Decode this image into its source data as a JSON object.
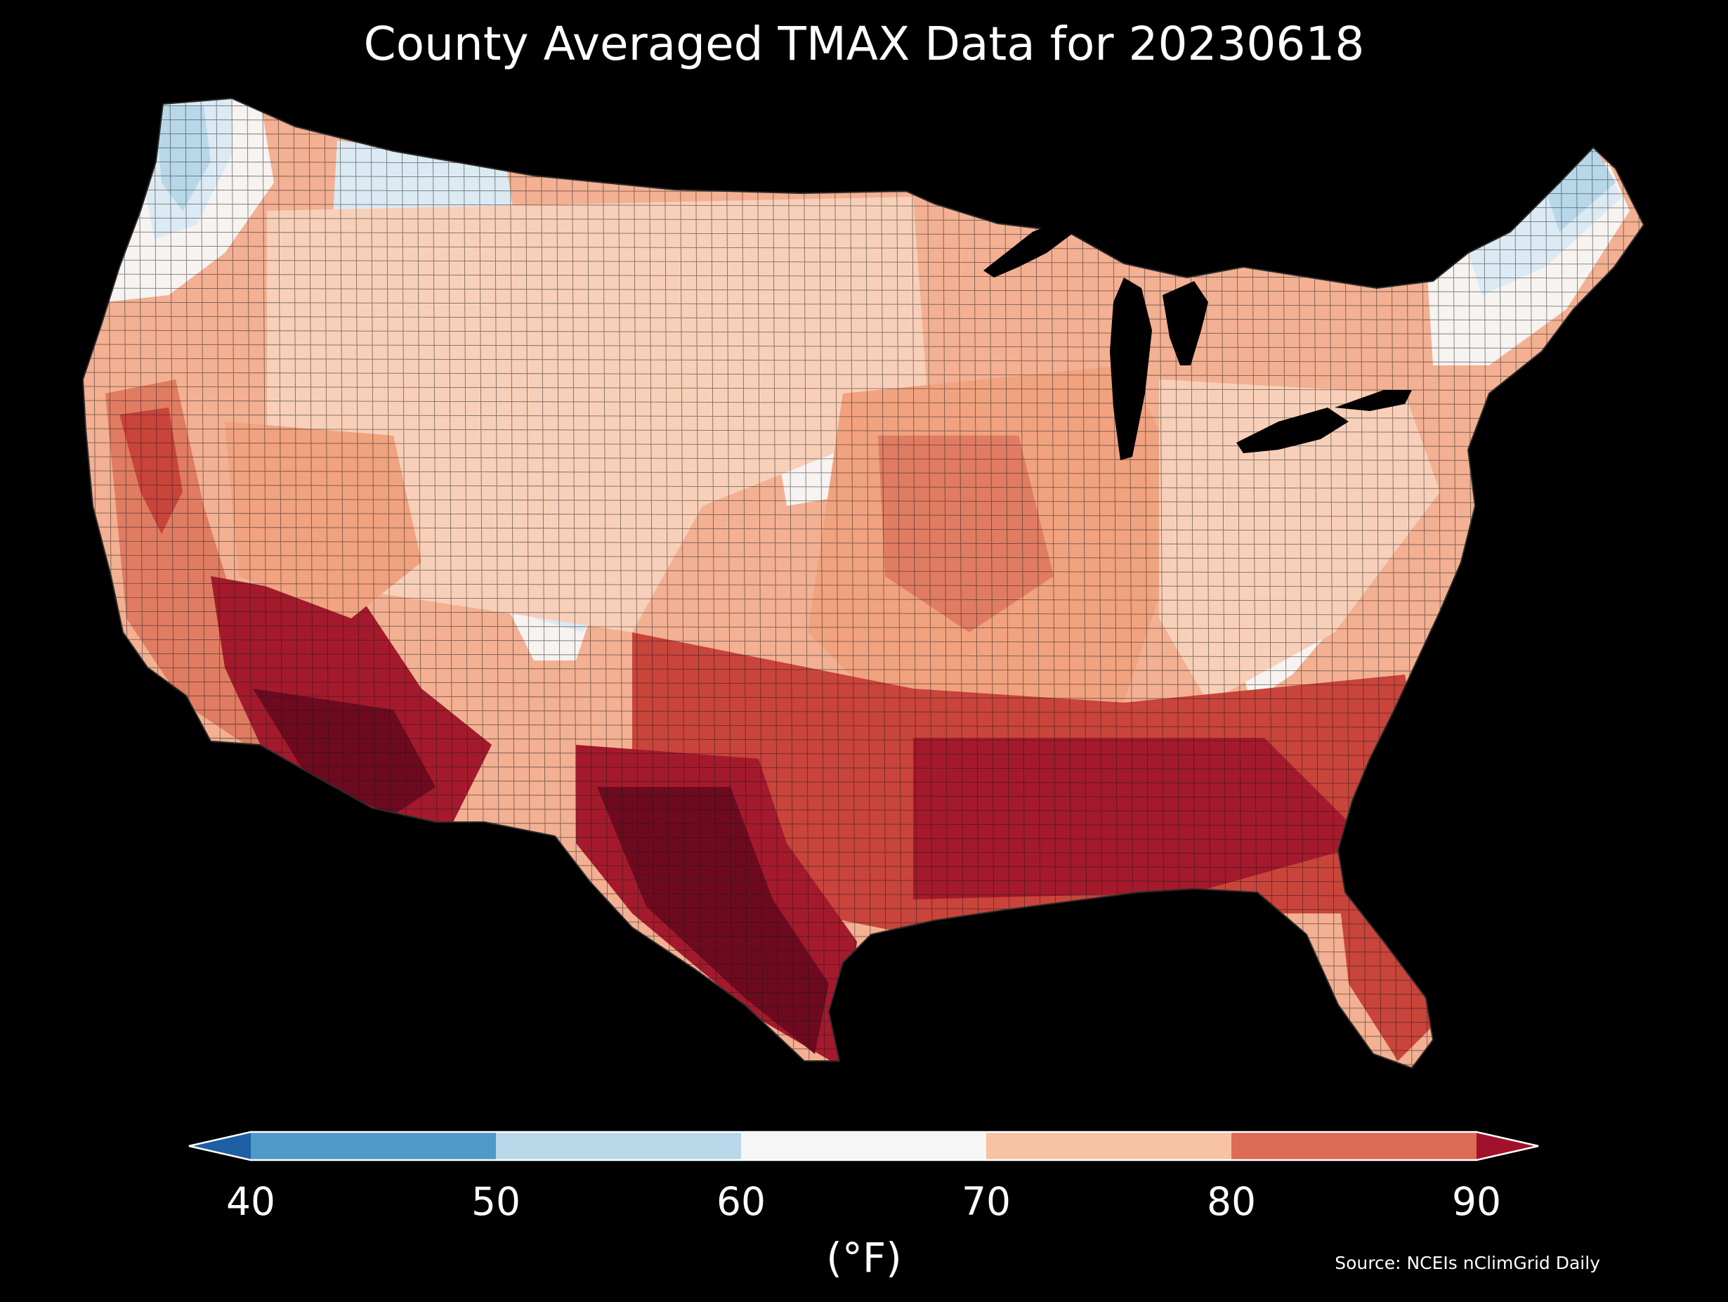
{
  "title": "County Averaged TMAX Data for 20230618",
  "source": "Source: NCEIs nClimGrid Daily",
  "colorbar": {
    "unit_label": "(°F)",
    "ticks": [
      "40",
      "50",
      "60",
      "70",
      "80",
      "90"
    ],
    "bins": [
      {
        "from": null,
        "to": 40,
        "color": "#1f5fa3"
      },
      {
        "from": 40,
        "to": 50,
        "color": "#4d9ac7"
      },
      {
        "from": 50,
        "to": 60,
        "color": "#b8d8ea"
      },
      {
        "from": 60,
        "to": 70,
        "color": "#f6f6f6"
      },
      {
        "from": 70,
        "to": 80,
        "color": "#f8c2a4"
      },
      {
        "from": 80,
        "to": 90,
        "color": "#dd6a55"
      },
      {
        "from": 90,
        "to": null,
        "color": "#a1112c"
      }
    ],
    "extend": "both"
  },
  "map": {
    "region": "Contiguous United States, county level",
    "background_color": "#000000",
    "border_color": "#1a1a1a",
    "palette": {
      "very_cool": "#b8d8ea",
      "cool": "#dceaf3",
      "neutral": "#f6f3f0",
      "mild": "#f8d0b9",
      "warm": "#f1a27f",
      "warmer": "#e07c62",
      "hot": "#c9443b",
      "very_hot": "#a41a2c",
      "extreme": "#6e0a1f"
    }
  }
}
